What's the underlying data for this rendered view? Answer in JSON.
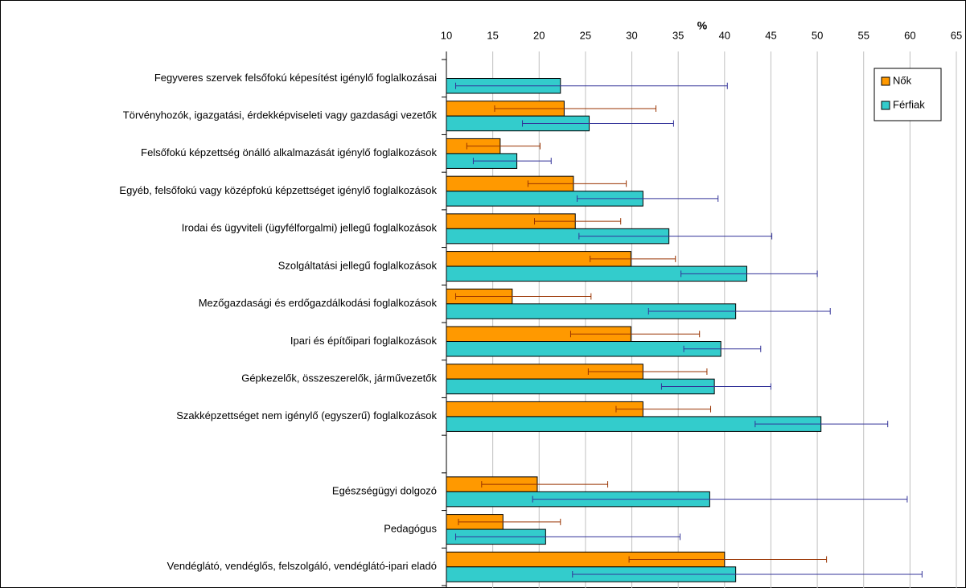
{
  "chart_data": {
    "type": "bar",
    "orientation": "horizontal",
    "x_label": "%",
    "categories": [
      "Fegyveres szervek felsőfokú képesítést igénylő foglalkozásai",
      "Törvényhozók, igazgatási, érdekképviseleti vagy gazdasági vezetők",
      "Felsőfokú képzettség önálló alkalmazását igénylő foglalkozások",
      "Egyéb, felsőfokú vagy középfokú képzettséget igénylő foglalkozások",
      "Irodai és ügyviteli (ügyfélforgalmi) jellegű foglalkozások",
      "Szolgáltatási jellegű foglalkozások",
      "Mezőgazdasági és erdőgazdálkodási foglalkozások",
      "Ipari és építőipari foglalkozások",
      "Gépkezelők, összeszerelők, járművezetők",
      "Szakképzettséget nem igénylő (egyszerű) foglalkozások",
      null,
      "Egészségügyi dolgozó",
      "Pedagógus",
      "Vendéglátó, vendéglős, felszolgáló, vendéglátó-ipari eladó"
    ],
    "series": [
      {
        "name": "Nők",
        "color": "#ff9900",
        "error_color": "#993300",
        "values": [
          null,
          22.7,
          15.8,
          23.7,
          23.9,
          29.9,
          17.1,
          29.9,
          31.2,
          31.2,
          null,
          19.8,
          16.1,
          40.0
        ],
        "lower": [
          null,
          15.2,
          12.2,
          18.8,
          19.5,
          25.5,
          11.0,
          23.4,
          25.3,
          28.3,
          null,
          13.8,
          11.3,
          29.7
        ],
        "upper": [
          null,
          32.6,
          20.1,
          29.4,
          28.8,
          34.7,
          25.6,
          37.3,
          38.1,
          38.5,
          null,
          27.4,
          22.3,
          51.0
        ]
      },
      {
        "name": "Férfiak",
        "color": "#33cccc",
        "error_color": "#333399",
        "values": [
          22.3,
          25.4,
          17.6,
          31.2,
          34.0,
          42.4,
          41.2,
          39.6,
          38.9,
          50.4,
          null,
          38.4,
          20.7,
          41.2
        ],
        "lower": [
          11.0,
          18.2,
          12.9,
          24.1,
          24.3,
          35.3,
          31.8,
          35.6,
          33.2,
          43.3,
          null,
          19.3,
          11.0,
          23.6
        ],
        "upper": [
          40.3,
          34.5,
          21.3,
          39.3,
          45.1,
          50.0,
          51.4,
          43.9,
          45.0,
          57.6,
          null,
          59.7,
          35.2,
          61.3
        ]
      }
    ],
    "xlim": [
      10,
      65
    ],
    "xticks": [
      10,
      15,
      20,
      25,
      30,
      35,
      40,
      45,
      50,
      55,
      60,
      65
    ],
    "grid": true,
    "legend": "top-right"
  }
}
